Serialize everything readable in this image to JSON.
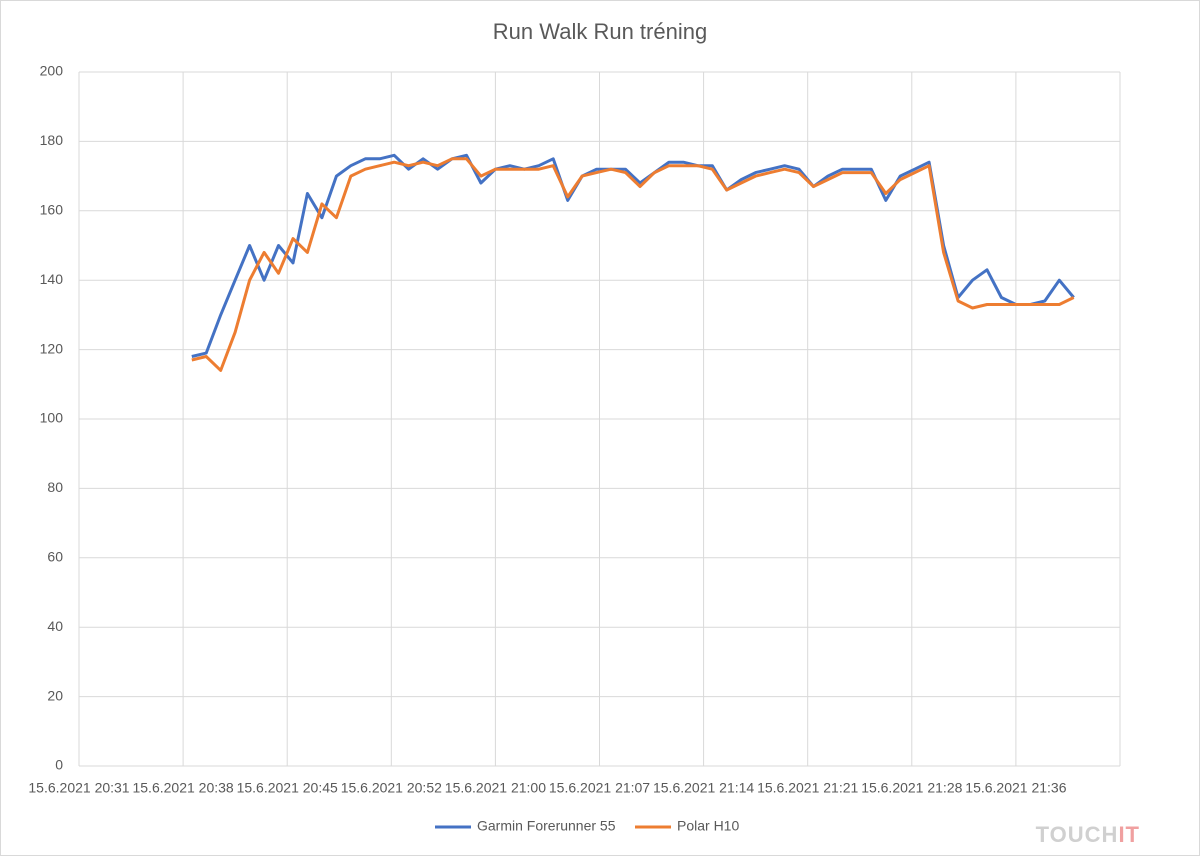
{
  "chart_data": {
    "type": "line",
    "title": "Run Walk Run tréning",
    "x": [
      "15.6.2021 20:39",
      "15.6.2021 20:40",
      "15.6.2021 20:41",
      "15.6.2021 20:42",
      "15.6.2021 20:43",
      "15.6.2021 20:44",
      "15.6.2021 20:45",
      "15.6.2021 20:46",
      "15.6.2021 20:47",
      "15.6.2021 20:48",
      "15.6.2021 20:49",
      "15.6.2021 20:50",
      "15.6.2021 20:51",
      "15.6.2021 20:52",
      "15.6.2021 20:53",
      "15.6.2021 20:54",
      "15.6.2021 20:55",
      "15.6.2021 20:56",
      "15.6.2021 20:57",
      "15.6.2021 20:58",
      "15.6.2021 20:59",
      "15.6.2021 21:00",
      "15.6.2021 21:01",
      "15.6.2021 21:02",
      "15.6.2021 21:03",
      "15.6.2021 21:04",
      "15.6.2021 21:05",
      "15.6.2021 21:06",
      "15.6.2021 21:07",
      "15.6.2021 21:08",
      "15.6.2021 21:09",
      "15.6.2021 21:10",
      "15.6.2021 21:11",
      "15.6.2021 21:12",
      "15.6.2021 21:13",
      "15.6.2021 21:14",
      "15.6.2021 21:15",
      "15.6.2021 21:16",
      "15.6.2021 21:17",
      "15.6.2021 21:18",
      "15.6.2021 21:19",
      "15.6.2021 21:20",
      "15.6.2021 21:21",
      "15.6.2021 21:22",
      "15.6.2021 21:23",
      "15.6.2021 21:24",
      "15.6.2021 21:25",
      "15.6.2021 21:26",
      "15.6.2021 21:27",
      "15.6.2021 21:28",
      "15.6.2021 21:29",
      "15.6.2021 21:30",
      "15.6.2021 21:31",
      "15.6.2021 21:32",
      "15.6.2021 21:33",
      "15.6.2021 21:34",
      "15.6.2021 21:35",
      "15.6.2021 21:36",
      "15.6.2021 21:37",
      "15.6.2021 21:38",
      "15.6.2021 21:39",
      "15.6.2021 21:40"
    ],
    "series": [
      {
        "name": "Garmin Forerunner 55",
        "color": "#4472c4",
        "values": [
          118,
          119,
          130,
          140,
          150,
          140,
          150,
          145,
          165,
          158,
          170,
          173,
          175,
          175,
          176,
          172,
          175,
          172,
          175,
          176,
          168,
          172,
          173,
          172,
          173,
          175,
          163,
          170,
          172,
          172,
          172,
          168,
          171,
          174,
          174,
          173,
          173,
          166,
          169,
          171,
          172,
          173,
          172,
          167,
          170,
          172,
          172,
          172,
          163,
          170,
          172,
          174,
          150,
          135,
          140,
          143,
          135,
          133,
          133,
          134,
          140,
          135
        ]
      },
      {
        "name": "Polar H10",
        "color": "#ed7d31",
        "values": [
          117,
          118,
          114,
          125,
          140,
          148,
          142,
          152,
          148,
          162,
          158,
          170,
          172,
          173,
          174,
          173,
          174,
          173,
          175,
          175,
          170,
          172,
          172,
          172,
          172,
          173,
          164,
          170,
          171,
          172,
          171,
          167,
          171,
          173,
          173,
          173,
          172,
          166,
          168,
          170,
          171,
          172,
          171,
          167,
          169,
          171,
          171,
          171,
          165,
          169,
          171,
          173,
          148,
          134,
          132,
          133,
          133,
          133,
          133,
          133,
          133,
          135
        ]
      }
    ],
    "xlim": [
      "15.6.2021 20:31:12",
      "15.6.2021 21:43:12"
    ],
    "xticks": [
      {
        "value": "15.6.2021 20:31:12",
        "label": "15.6.2021 20:31"
      },
      {
        "value": "15.6.2021 20:38:24",
        "label": "15.6.2021 20:38"
      },
      {
        "value": "15.6.2021 20:45:36",
        "label": "15.6.2021 20:45"
      },
      {
        "value": "15.6.2021 20:52:48",
        "label": "15.6.2021 20:52"
      },
      {
        "value": "15.6.2021 21:00:00",
        "label": "15.6.2021 21:00"
      },
      {
        "value": "15.6.2021 21:07:12",
        "label": "15.6.2021 21:07"
      },
      {
        "value": "15.6.2021 21:14:24",
        "label": "15.6.2021 21:14"
      },
      {
        "value": "15.6.2021 21:21:36",
        "label": "15.6.2021 21:21"
      },
      {
        "value": "15.6.2021 21:28:48",
        "label": "15.6.2021 21:28"
      },
      {
        "value": "15.6.2021 21:36:00",
        "label": "15.6.2021 21:36"
      }
    ],
    "ylim": [
      0,
      200
    ],
    "yticks": [
      0,
      20,
      40,
      60,
      80,
      100,
      120,
      140,
      160,
      180,
      200
    ],
    "grid": true,
    "legend": "bottom"
  },
  "watermark": [
    "TOUCH",
    "IT"
  ]
}
